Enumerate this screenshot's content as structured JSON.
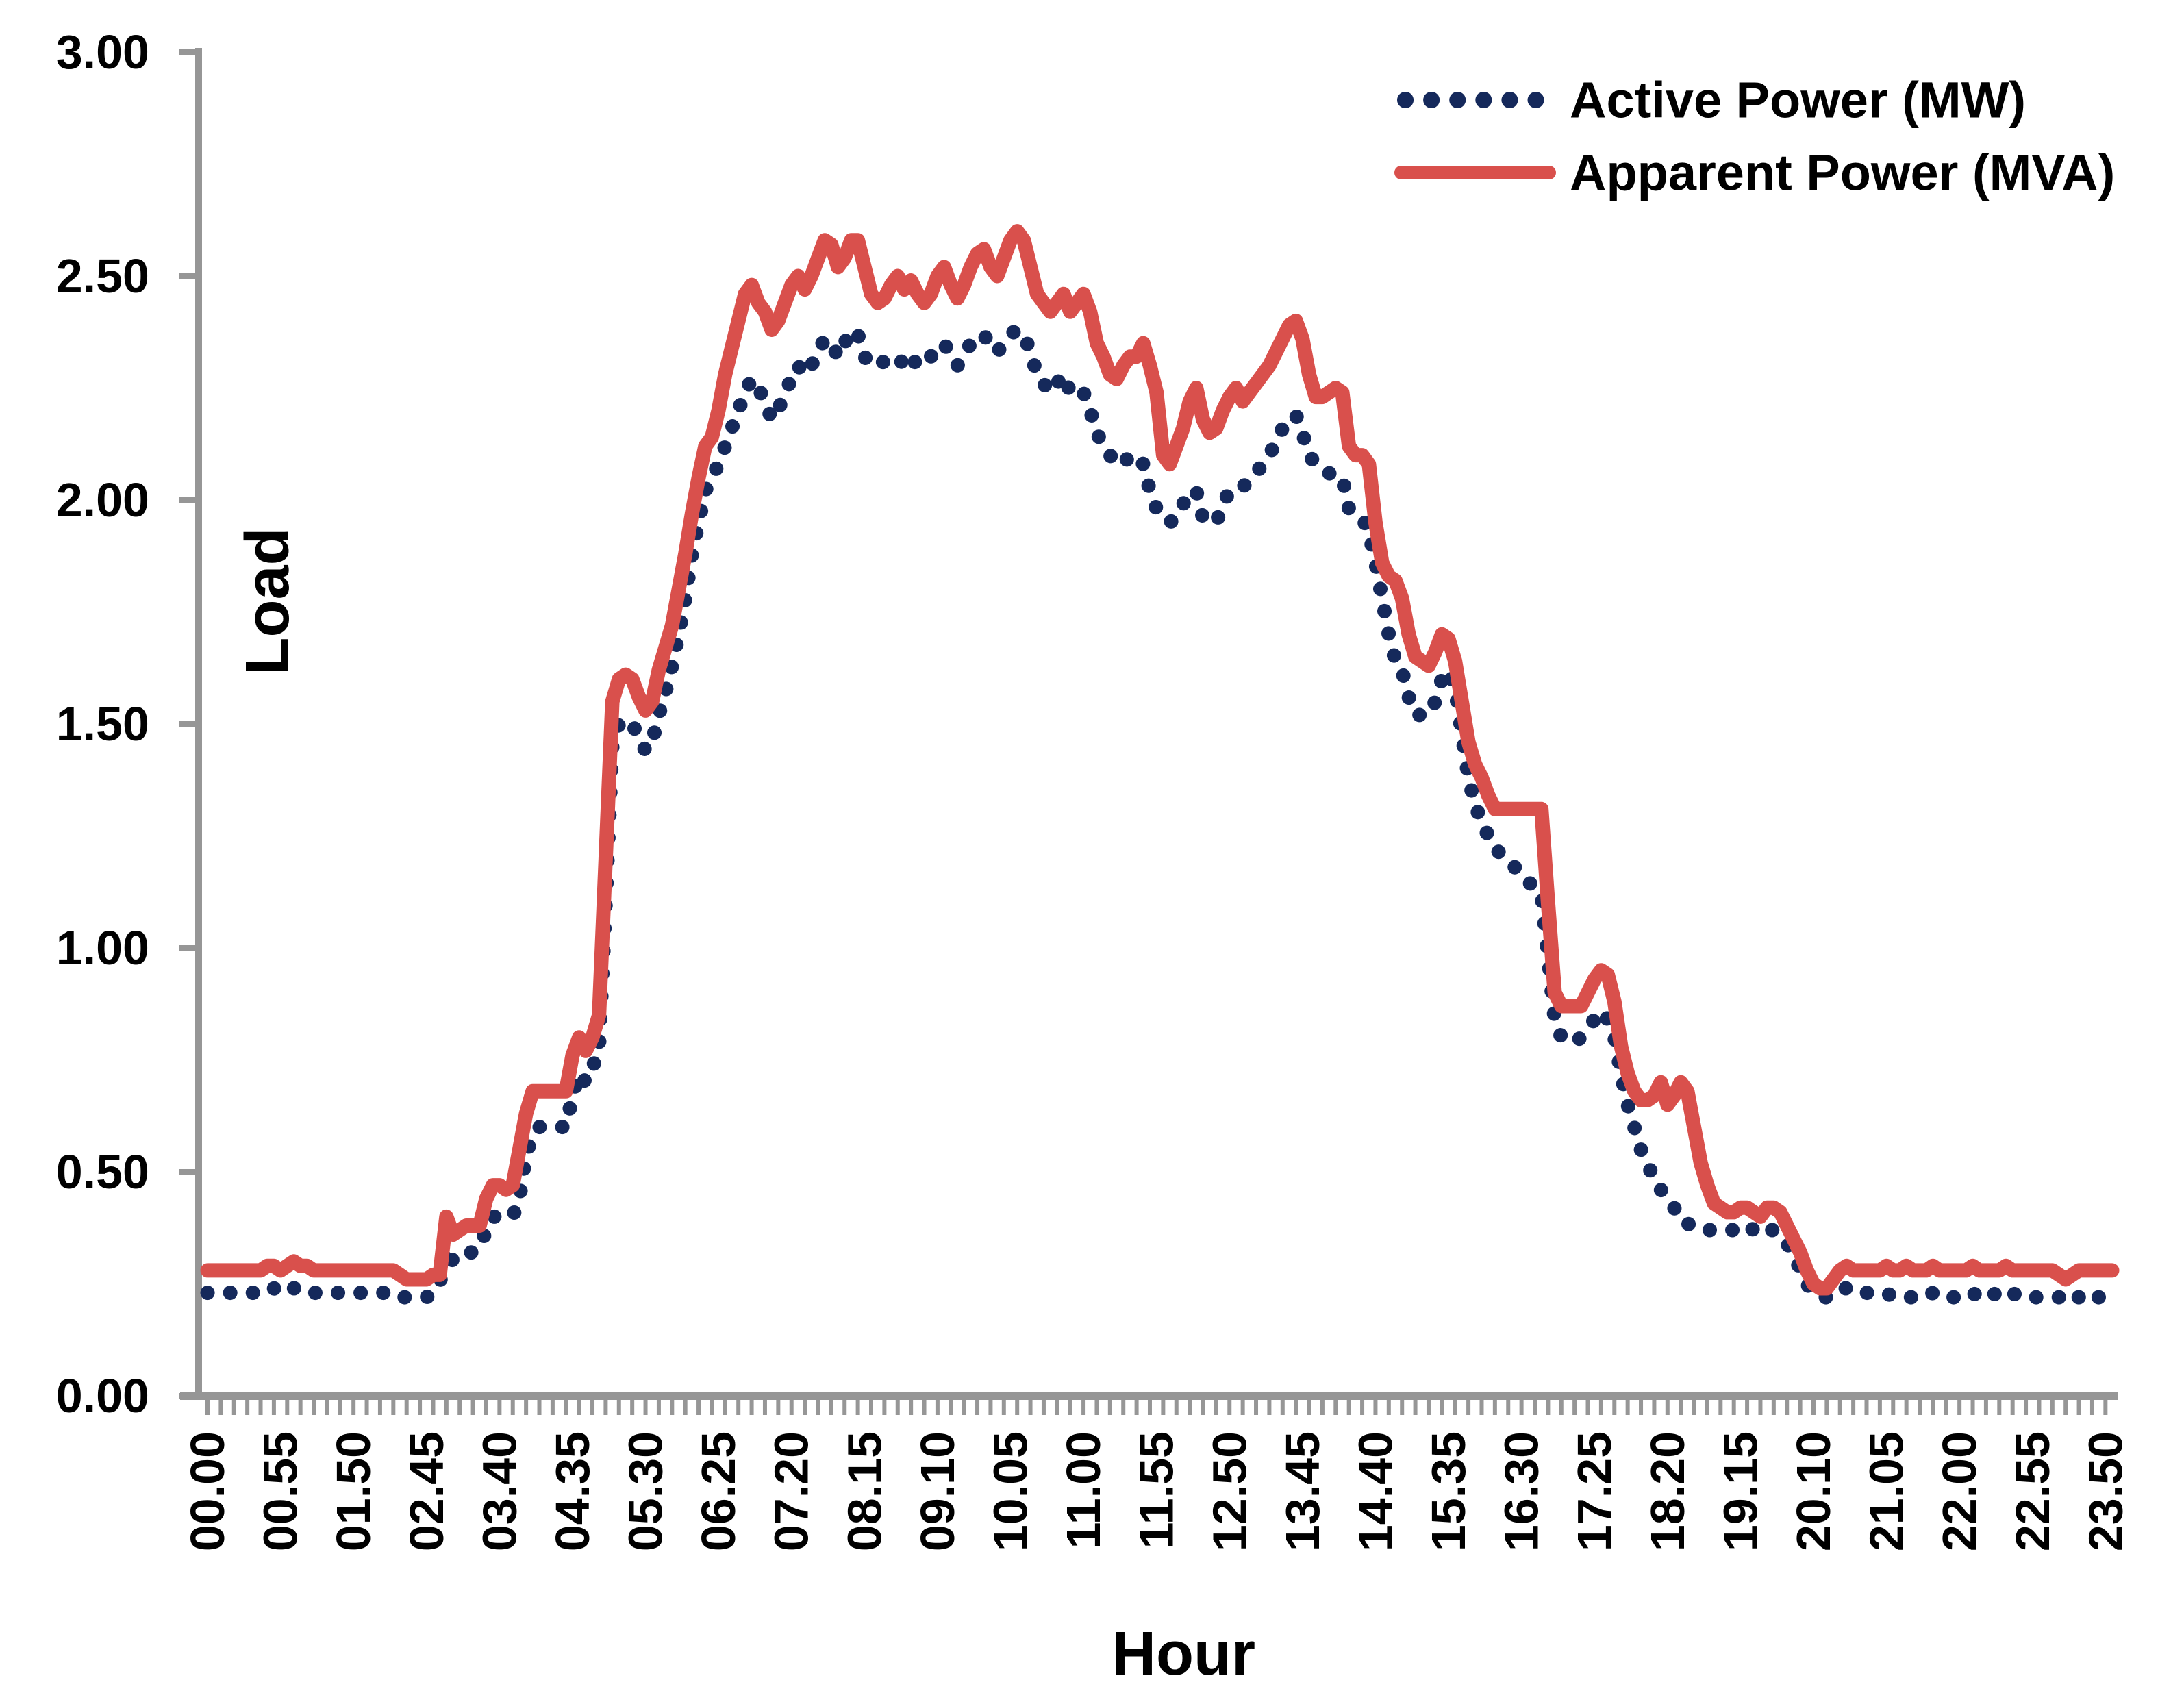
{
  "chart_data": {
    "type": "line",
    "title": "",
    "xlabel": "Hour",
    "ylabel": "Load",
    "ylim": [
      0,
      3
    ],
    "ytick_labels": [
      "0.00",
      "0.50",
      "1.00",
      "1.50",
      "2.00",
      "2.50",
      "3.00"
    ],
    "x_points": 288,
    "x_minutes_per_point": 5,
    "x_label_every_n_points": 11,
    "x_labels": [
      "00.00",
      "00.55",
      "01.50",
      "02.45",
      "03.40",
      "04.35",
      "05.30",
      "06.25",
      "07.20",
      "08.15",
      "09.10",
      "10.05",
      "11.00",
      "11.55",
      "12.50",
      "13.45",
      "14.40",
      "15.35",
      "16.30",
      "17.25",
      "18.20",
      "19.15",
      "20.10",
      "21.05",
      "22.00",
      "22.55",
      "23.50"
    ],
    "grid": false,
    "legend_position": "top-right",
    "series": [
      {
        "name": "Active Power (MW)",
        "color": "#15295B",
        "style": "dotted",
        "values": [
          0.23,
          0.23,
          0.23,
          0.23,
          0.23,
          0.23,
          0.23,
          0.23,
          0.23,
          0.24,
          0.24,
          0.23,
          0.24,
          0.24,
          0.24,
          0.23,
          0.23,
          0.23,
          0.23,
          0.23,
          0.23,
          0.23,
          0.23,
          0.23,
          0.23,
          0.23,
          0.23,
          0.23,
          0.23,
          0.22,
          0.22,
          0.22,
          0.22,
          0.22,
          0.23,
          0.25,
          0.33,
          0.3,
          0.31,
          0.32,
          0.32,
          0.33,
          0.37,
          0.4,
          0.4,
          0.4,
          0.4,
          0.44,
          0.54,
          0.58,
          0.6,
          0.6,
          0.6,
          0.6,
          0.6,
          0.67,
          0.72,
          0.7,
          0.73,
          0.78,
          1.1,
          1.45,
          1.5,
          1.51,
          1.5,
          1.47,
          1.44,
          1.46,
          1.52,
          1.57,
          1.63,
          1.7,
          1.78,
          1.88,
          1.95,
          2.02,
          2.05,
          2.08,
          2.12,
          2.16,
          2.2,
          2.24,
          2.27,
          2.25,
          2.22,
          2.18,
          2.2,
          2.24,
          2.27,
          2.3,
          2.28,
          2.3,
          2.33,
          2.36,
          2.35,
          2.32,
          2.35,
          2.38,
          2.37,
          2.32,
          2.3,
          2.3,
          2.31,
          2.32,
          2.32,
          2.3,
          2.32,
          2.3,
          2.3,
          2.32,
          2.34,
          2.35,
          2.32,
          2.3,
          2.32,
          2.35,
          2.36,
          2.37,
          2.34,
          2.33,
          2.35,
          2.37,
          2.38,
          2.37,
          2.33,
          2.28,
          2.26,
          2.24,
          2.26,
          2.28,
          2.24,
          2.25,
          2.24,
          2.2,
          2.15,
          2.12,
          2.1,
          2.08,
          2.08,
          2.1,
          2.1,
          2.08,
          2.02,
          1.98,
          1.96,
          1.95,
          1.96,
          1.99,
          2.02,
          2.02,
          1.96,
          1.95,
          1.95,
          1.99,
          2.02,
          2.03,
          2.03,
          2.04,
          2.06,
          2.08,
          2.1,
          2.13,
          2.16,
          2.18,
          2.19,
          2.15,
          2.1,
          2.08,
          2.07,
          2.06,
          2.05,
          2.05,
          1.98,
          1.97,
          1.96,
          1.93,
          1.86,
          1.78,
          1.7,
          1.64,
          1.62,
          1.56,
          1.52,
          1.52,
          1.52,
          1.55,
          1.6,
          1.62,
          1.58,
          1.48,
          1.38,
          1.32,
          1.28,
          1.25,
          1.22,
          1.21,
          1.2,
          1.18,
          1.16,
          1.15,
          1.13,
          1.12,
          0.98,
          0.84,
          0.8,
          0.79,
          0.79,
          0.8,
          0.82,
          0.84,
          0.86,
          0.84,
          0.8,
          0.72,
          0.65,
          0.6,
          0.55,
          0.52,
          0.48,
          0.46,
          0.44,
          0.42,
          0.39,
          0.385,
          0.375,
          0.37,
          0.37,
          0.37,
          0.37,
          0.37,
          0.37,
          0.37,
          0.38,
          0.37,
          0.36,
          0.37,
          0.37,
          0.36,
          0.34,
          0.32,
          0.28,
          0.25,
          0.23,
          0.22,
          0.22,
          0.23,
          0.24,
          0.24,
          0.24,
          0.23,
          0.23,
          0.23,
          0.23,
          0.23,
          0.22,
          0.22,
          0.22,
          0.22,
          0.22,
          0.22,
          0.23,
          0.22,
          0.22,
          0.22,
          0.22,
          0.22,
          0.23,
          0.22,
          0.22,
          0.23,
          0.22,
          0.22,
          0.23,
          0.22,
          0.22,
          0.22,
          0.22,
          0.22,
          0.22,
          0.22,
          0.21,
          0.22,
          0.22,
          0.23,
          0.22,
          0.22,
          0.23,
          0.23
        ]
      },
      {
        "name": "Apparent Power (MVA)",
        "color": "#D9504C",
        "style": "solid",
        "values": [
          0.28,
          0.28,
          0.28,
          0.28,
          0.28,
          0.28,
          0.28,
          0.28,
          0.28,
          0.29,
          0.29,
          0.28,
          0.29,
          0.3,
          0.29,
          0.29,
          0.28,
          0.28,
          0.28,
          0.28,
          0.28,
          0.28,
          0.28,
          0.28,
          0.28,
          0.28,
          0.28,
          0.28,
          0.28,
          0.27,
          0.26,
          0.26,
          0.26,
          0.26,
          0.27,
          0.27,
          0.4,
          0.36,
          0.37,
          0.38,
          0.38,
          0.38,
          0.44,
          0.47,
          0.47,
          0.46,
          0.47,
          0.55,
          0.63,
          0.68,
          0.68,
          0.68,
          0.68,
          0.68,
          0.68,
          0.76,
          0.8,
          0.77,
          0.8,
          0.85,
          1.2,
          1.55,
          1.6,
          1.61,
          1.6,
          1.56,
          1.53,
          1.55,
          1.62,
          1.67,
          1.72,
          1.8,
          1.88,
          1.97,
          2.05,
          2.12,
          2.14,
          2.2,
          2.28,
          2.34,
          2.4,
          2.46,
          2.48,
          2.44,
          2.42,
          2.38,
          2.4,
          2.44,
          2.48,
          2.5,
          2.47,
          2.5,
          2.54,
          2.58,
          2.57,
          2.52,
          2.54,
          2.58,
          2.58,
          2.52,
          2.46,
          2.44,
          2.45,
          2.48,
          2.5,
          2.47,
          2.49,
          2.46,
          2.44,
          2.46,
          2.5,
          2.52,
          2.48,
          2.45,
          2.48,
          2.52,
          2.55,
          2.56,
          2.52,
          2.5,
          2.54,
          2.58,
          2.6,
          2.58,
          2.52,
          2.46,
          2.44,
          2.42,
          2.44,
          2.46,
          2.42,
          2.44,
          2.46,
          2.42,
          2.35,
          2.32,
          2.28,
          2.27,
          2.3,
          2.32,
          2.32,
          2.35,
          2.3,
          2.24,
          2.1,
          2.08,
          2.12,
          2.16,
          2.22,
          2.25,
          2.18,
          2.15,
          2.16,
          2.2,
          2.23,
          2.25,
          2.22,
          2.24,
          2.26,
          2.28,
          2.3,
          2.33,
          2.36,
          2.39,
          2.4,
          2.36,
          2.28,
          2.23,
          2.23,
          2.24,
          2.25,
          2.24,
          2.12,
          2.1,
          2.1,
          2.08,
          1.95,
          1.86,
          1.83,
          1.82,
          1.78,
          1.7,
          1.65,
          1.64,
          1.63,
          1.66,
          1.7,
          1.69,
          1.64,
          1.55,
          1.46,
          1.41,
          1.38,
          1.34,
          1.31,
          1.31,
          1.31,
          1.31,
          1.31,
          1.31,
          1.31,
          1.31,
          1.1,
          0.9,
          0.87,
          0.87,
          0.87,
          0.87,
          0.9,
          0.93,
          0.95,
          0.94,
          0.88,
          0.78,
          0.72,
          0.68,
          0.66,
          0.66,
          0.67,
          0.7,
          0.65,
          0.67,
          0.7,
          0.68,
          0.6,
          0.52,
          0.47,
          0.43,
          0.42,
          0.41,
          0.41,
          0.42,
          0.42,
          0.41,
          0.4,
          0.42,
          0.42,
          0.41,
          0.38,
          0.35,
          0.32,
          0.28,
          0.25,
          0.24,
          0.24,
          0.26,
          0.28,
          0.29,
          0.28,
          0.28,
          0.28,
          0.28,
          0.28,
          0.29,
          0.28,
          0.28,
          0.29,
          0.28,
          0.28,
          0.28,
          0.29,
          0.28,
          0.28,
          0.28,
          0.28,
          0.28,
          0.29,
          0.28,
          0.28,
          0.28,
          0.28,
          0.29,
          0.28,
          0.28,
          0.28,
          0.28,
          0.28,
          0.28,
          0.28,
          0.27,
          0.26,
          0.27,
          0.28,
          0.28,
          0.28,
          0.28,
          0.28,
          0.28
        ]
      }
    ]
  },
  "colors": {
    "background": "#FFFFFF",
    "axis": "#969696",
    "text": "#000000",
    "active_series": "#15295B",
    "apparent_series": "#D9504C"
  }
}
